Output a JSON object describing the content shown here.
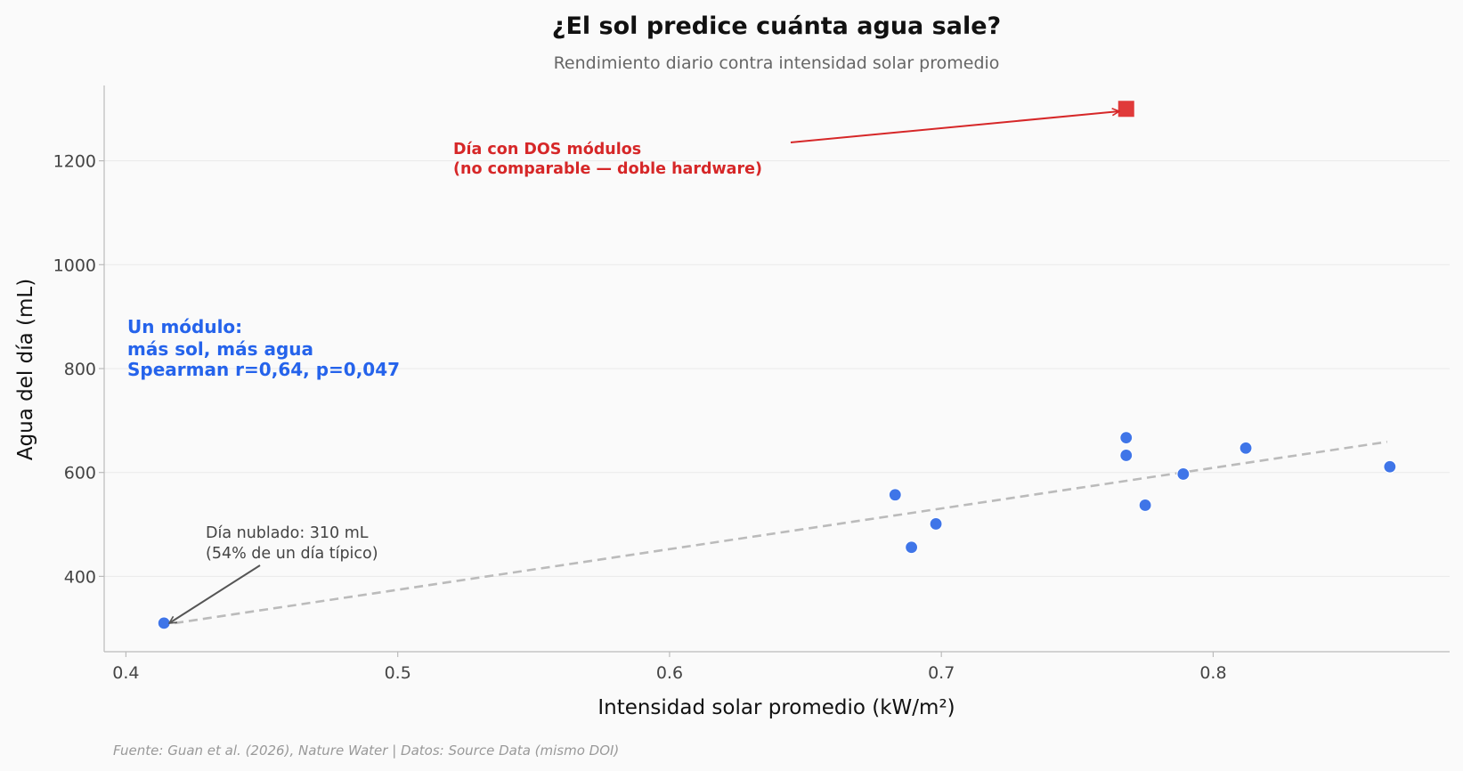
{
  "chart_data": {
    "type": "scatter",
    "title": "¿El sol predice cuánta agua sale?",
    "subtitle": "Rendimiento diario contra intensidad solar promedio",
    "xlabel": "Intensidad solar promedio (kW/m²)",
    "ylabel": "Agua del día (mL)",
    "xlim": [
      0.392,
      0.887
    ],
    "ylim": [
      255,
      1345
    ],
    "xticks": [
      "0.4",
      "0.5",
      "0.6",
      "0.7",
      "0.8"
    ],
    "yticks": [
      "400",
      "600",
      "800",
      "1000",
      "1200"
    ],
    "grid": "horizontal",
    "colors": {
      "single": "#3f75e8",
      "double": "#e03a3a",
      "trend": "#bbbbbb"
    },
    "series": [
      {
        "points": [
          {
            "x": 0.414,
            "y": 310
          },
          {
            "x": 0.683,
            "y": 557
          },
          {
            "x": 0.689,
            "y": 456
          },
          {
            "x": 0.698,
            "y": 501
          },
          {
            "x": 0.768,
            "y": 667
          },
          {
            "x": 0.768,
            "y": 633
          },
          {
            "x": 0.775,
            "y": 537
          },
          {
            "x": 0.789,
            "y": 597
          },
          {
            "x": 0.812,
            "y": 647
          },
          {
            "x": 0.865,
            "y": 611
          }
        ]
      },
      {
        "marker": "square",
        "points": [
          {
            "x": 0.768,
            "y": 1300
          }
        ]
      }
    ],
    "trendline": {
      "x": [
        0.414,
        0.865
      ],
      "y": [
        310,
        659
      ]
    },
    "annotations": {
      "double": [
        "Día con DOS módulos",
        "(no comparable — doble hardware)"
      ],
      "single": [
        "Un módulo:",
        "más sol, más agua",
        "Spearman r=0,64, p=0,047"
      ],
      "cloudy": [
        "Día nublado: 310 mL",
        "(54% de un día típico)"
      ]
    },
    "source": "Fuente: Guan et al. (2026), Nature Water | Datos: Source Data (mismo DOI)"
  }
}
